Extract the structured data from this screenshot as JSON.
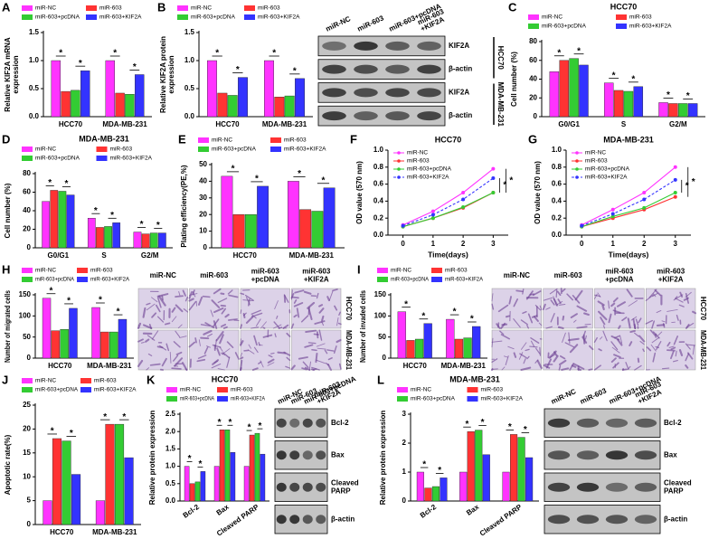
{
  "chart_data": [
    {
      "panel": "A",
      "type": "bar",
      "ylabel": [
        "Relative KIF2A mRNA",
        "expression"
      ],
      "categories": [
        "HCC70",
        "MDA-MB-231"
      ],
      "series": [
        {
          "name": "miR-NC",
          "color": "#ff33ff",
          "values": [
            1.0,
            1.0
          ]
        },
        {
          "name": "miR-603",
          "color": "#ff3333",
          "values": [
            0.45,
            0.42
          ]
        },
        {
          "name": "miR-603+pcDNA",
          "color": "#33cc33",
          "values": [
            0.47,
            0.4
          ]
        },
        {
          "name": "miR-603+KIF2A",
          "color": "#3333ff",
          "values": [
            0.82,
            0.75
          ]
        }
      ],
      "ylim": [
        0,
        1.5
      ],
      "yticks": [
        {
          "value": 0,
          "label": "0.0"
        },
        0.5,
        {
          "value": 1,
          "label": "1.0"
        },
        1.5
      ],
      "significance": "*"
    },
    {
      "panel": "B",
      "type": "bar",
      "ylabel": [
        "Relative KIF2A protein",
        "expression"
      ],
      "categories": [
        "HCC70",
        "MDA-MB-231"
      ],
      "series": [
        {
          "name": "miR-NC",
          "color": "#ff33ff",
          "values": [
            1.0,
            1.0
          ]
        },
        {
          "name": "miR-603",
          "color": "#ff3333",
          "values": [
            0.42,
            0.35
          ]
        },
        {
          "name": "miR-603+pcDNA",
          "color": "#33cc33",
          "values": [
            0.38,
            0.37
          ]
        },
        {
          "name": "miR-603+KIF2A",
          "color": "#3333ff",
          "values": [
            0.7,
            0.68
          ]
        }
      ],
      "ylim": [
        0,
        1.5
      ],
      "yticks": [
        {
          "value": 0,
          "label": "0.0"
        },
        0.5,
        {
          "value": 1,
          "label": "1.0"
        },
        1.5
      ],
      "significance": "*"
    },
    {
      "panel": "C",
      "type": "bar",
      "title": "HCC70",
      "ylabel": [
        "Cell number (%)"
      ],
      "categories": [
        "G0/G1",
        "S",
        "G2/M"
      ],
      "series": [
        {
          "name": "miR-NC",
          "color": "#ff33ff",
          "values": [
            48,
            36,
            15
          ]
        },
        {
          "name": "miR-603",
          "color": "#ff3333",
          "values": [
            60,
            28,
            14
          ]
        },
        {
          "name": "miR-603+pcDNA",
          "color": "#33cc33",
          "values": [
            62,
            27,
            14
          ]
        },
        {
          "name": "miR-603+KIF2A",
          "color": "#3333ff",
          "values": [
            55,
            32,
            14
          ]
        }
      ],
      "ylim": [
        0,
        80
      ],
      "yticks": [
        0,
        20,
        40,
        60,
        80
      ],
      "significance": "*"
    },
    {
      "panel": "D",
      "type": "bar",
      "title": "MDA-MB-231",
      "ylabel": [
        "Cell number (%)"
      ],
      "categories": [
        "G0/G1",
        "S",
        "G2/M"
      ],
      "series": [
        {
          "name": "miR-NC",
          "color": "#ff33ff",
          "values": [
            50,
            32,
            17
          ]
        },
        {
          "name": "miR-603",
          "color": "#ff3333",
          "values": [
            62,
            22,
            15
          ]
        },
        {
          "name": "miR-603+pcDNA",
          "color": "#33cc33",
          "values": [
            61,
            23,
            16
          ]
        },
        {
          "name": "miR-603+KIF2A",
          "color": "#3333ff",
          "values": [
            57,
            27,
            16
          ]
        }
      ],
      "ylim": [
        0,
        80
      ],
      "yticks": [
        0,
        20,
        40,
        60,
        80
      ],
      "significance": "*"
    },
    {
      "panel": "E",
      "type": "bar",
      "ylabel": [
        "Plating efficiency(PE,%)"
      ],
      "categories": [
        "HCC70",
        "MDA-MB-231"
      ],
      "series": [
        {
          "name": "miR-NC",
          "color": "#ff33ff",
          "values": [
            43,
            40
          ]
        },
        {
          "name": "miR-603",
          "color": "#ff3333",
          "values": [
            20,
            23
          ]
        },
        {
          "name": "miR-603+pcDNA",
          "color": "#33cc33",
          "values": [
            20,
            22
          ]
        },
        {
          "name": "miR-603+KIF2A",
          "color": "#3333ff",
          "values": [
            37,
            36
          ]
        }
      ],
      "ylim": [
        0,
        50
      ],
      "yticks": [
        0,
        10,
        20,
        30,
        40,
        50
      ],
      "significance": "*"
    },
    {
      "panel": "F",
      "type": "line",
      "title": "HCC70",
      "ylabel": [
        "OD value (570 nm)"
      ],
      "xlabel": "Time(days)",
      "x": [
        0,
        1,
        2,
        3
      ],
      "series": [
        {
          "name": "miR-NC",
          "color": "#ff33ff",
          "values": [
            0.12,
            0.28,
            0.5,
            0.78
          ]
        },
        {
          "name": "miR-603",
          "color": "#ff3333",
          "values": [
            0.1,
            0.2,
            0.32,
            0.5
          ]
        },
        {
          "name": "miR-603+pcDNA",
          "color": "#33cc33",
          "values": [
            0.1,
            0.2,
            0.33,
            0.5
          ]
        },
        {
          "name": "miR-603+KIF2A",
          "color": "#3333ff",
          "values": [
            0.11,
            0.24,
            0.42,
            0.67
          ],
          "linestyle": "dashed"
        }
      ],
      "xlim": [
        -0.5,
        3.5
      ],
      "xticks": [
        0,
        1,
        2,
        3
      ],
      "ylim": [
        0,
        1
      ],
      "yticks": [
        {
          "value": 0,
          "label": "0.0"
        },
        0.2,
        0.4,
        0.6,
        0.8,
        {
          "value": 1,
          "label": "1.0"
        }
      ],
      "legend": "upper left",
      "significance": "*"
    },
    {
      "panel": "G",
      "type": "line",
      "title": "MDA-MB-231",
      "ylabel": [
        "OD value (570 nm)"
      ],
      "xlabel": "Time(days)",
      "x": [
        0,
        1,
        2,
        3
      ],
      "series": [
        {
          "name": "miR-NC",
          "color": "#ff33ff",
          "values": [
            0.12,
            0.3,
            0.5,
            0.8
          ]
        },
        {
          "name": "miR-603",
          "color": "#ff3333",
          "values": [
            0.1,
            0.2,
            0.3,
            0.45
          ]
        },
        {
          "name": "miR-603+pcDNA",
          "color": "#33cc33",
          "values": [
            0.1,
            0.22,
            0.32,
            0.5
          ]
        },
        {
          "name": "miR-603+KIF2A",
          "color": "#3333ff",
          "values": [
            0.11,
            0.25,
            0.42,
            0.65
          ],
          "linestyle": "dashed"
        }
      ],
      "xlim": [
        -0.5,
        3.5
      ],
      "xticks": [
        0,
        1,
        2,
        3
      ],
      "ylim": [
        0,
        1
      ],
      "yticks": [
        {
          "value": 0,
          "label": "0.0"
        },
        0.2,
        0.4,
        0.6,
        0.8,
        {
          "value": 1,
          "label": "1.0"
        }
      ],
      "legend": "upper left",
      "significance": "*"
    },
    {
      "panel": "H",
      "type": "bar",
      "ylabel": [
        "Number of migrated cells"
      ],
      "categories": [
        "HCC70",
        "MDA-MB-231"
      ],
      "series": [
        {
          "name": "miR-NC",
          "color": "#ff33ff",
          "values": [
            142,
            120
          ]
        },
        {
          "name": "miR-603",
          "color": "#ff3333",
          "values": [
            65,
            62
          ]
        },
        {
          "name": "miR-603+pcDNA",
          "color": "#33cc33",
          "values": [
            68,
            62
          ]
        },
        {
          "name": "miR-603+KIF2A",
          "color": "#3333ff",
          "values": [
            118,
            92
          ]
        }
      ],
      "ylim": [
        0,
        150
      ],
      "yticks": [
        0,
        50,
        100,
        150
      ],
      "significance": "*"
    },
    {
      "panel": "I",
      "type": "bar",
      "ylabel": [
        "Number of invaded cells"
      ],
      "categories": [
        "HCC70",
        "MDA-MB-231"
      ],
      "series": [
        {
          "name": "miR-NC",
          "color": "#ff33ff",
          "values": [
            110,
            92
          ]
        },
        {
          "name": "miR-603",
          "color": "#ff3333",
          "values": [
            42,
            45
          ]
        },
        {
          "name": "miR-603+pcDNA",
          "color": "#33cc33",
          "values": [
            45,
            48
          ]
        },
        {
          "name": "miR-603+KIF2A",
          "color": "#3333ff",
          "values": [
            82,
            75
          ]
        }
      ],
      "ylim": [
        0,
        150
      ],
      "yticks": [
        0,
        50,
        100,
        150
      ],
      "significance": "*"
    },
    {
      "panel": "J",
      "type": "bar",
      "ylabel": [
        "Apoptotic rate(%)"
      ],
      "categories": [
        "HCC70",
        "MDA-MB-231"
      ],
      "series": [
        {
          "name": "miR-NC",
          "color": "#ff33ff",
          "values": [
            5,
            5
          ]
        },
        {
          "name": "miR-603",
          "color": "#ff3333",
          "values": [
            18,
            21
          ]
        },
        {
          "name": "miR-603+pcDNA",
          "color": "#33cc33",
          "values": [
            17.5,
            21
          ]
        },
        {
          "name": "miR-603+KIF2A",
          "color": "#3333ff",
          "values": [
            10.5,
            14
          ]
        }
      ],
      "ylim": [
        0,
        25
      ],
      "yticks": [
        0,
        5,
        10,
        15,
        20,
        25
      ],
      "significance": "*"
    },
    {
      "panel": "K",
      "type": "bar",
      "title": "HCC70",
      "ylabel": [
        "Relative protein expression"
      ],
      "categories": [
        "Bcl-2",
        "Bax",
        "Cleaved PARP"
      ],
      "xtick_rotation": 35,
      "series": [
        {
          "name": "miR-NC",
          "color": "#ff33ff",
          "values": [
            1.0,
            1.0,
            1.0
          ]
        },
        {
          "name": "miR-603",
          "color": "#ff3333",
          "values": [
            0.5,
            2.05,
            1.9
          ]
        },
        {
          "name": "miR-603+pcDNA",
          "color": "#33cc33",
          "values": [
            0.55,
            2.05,
            1.95
          ]
        },
        {
          "name": "miR-603+KIF2A",
          "color": "#3333ff",
          "values": [
            0.85,
            1.4,
            1.35
          ]
        }
      ],
      "ylim": [
        0,
        2.5
      ],
      "yticks": [
        {
          "value": 0,
          "label": "0.0"
        },
        0.5,
        {
          "value": 1,
          "label": "1.0"
        },
        1.5,
        {
          "value": 2,
          "label": "2.0"
        },
        2.5
      ],
      "significance": "*"
    },
    {
      "panel": "L",
      "type": "bar",
      "title": "MDA-MB-231",
      "ylabel": [
        "Relative protein expression"
      ],
      "categories": [
        "Bcl-2",
        "Bax",
        "Cleaved PARP"
      ],
      "xtick_rotation": 35,
      "series": [
        {
          "name": "miR-NC",
          "color": "#ff33ff",
          "values": [
            1.0,
            1.0,
            1.0
          ]
        },
        {
          "name": "miR-603",
          "color": "#ff3333",
          "values": [
            0.45,
            2.4,
            2.3
          ]
        },
        {
          "name": "miR-603+pcDNA",
          "color": "#33cc33",
          "values": [
            0.5,
            2.45,
            2.2
          ]
        },
        {
          "name": "miR-603+KIF2A",
          "color": "#3333ff",
          "values": [
            0.8,
            1.6,
            1.5
          ]
        }
      ],
      "ylim": [
        0,
        3
      ],
      "yticks": [
        0,
        1,
        2,
        3
      ],
      "significance": "*"
    }
  ],
  "blots": [
    {
      "lanes": [
        [
          "miR-NC"
        ],
        [
          "miR-603"
        ],
        [
          "miR-603+pcDNA"
        ],
        [
          "miR-603",
          "+KIF2A"
        ]
      ],
      "bands": [
        [
          "KIF2A"
        ],
        [
          "β-actin"
        ],
        [
          "KIF2A"
        ],
        [
          "β-actin"
        ]
      ],
      "groups": [
        "HCC70",
        "MDA-MB-231"
      ]
    },
    {
      "lanes": [
        [
          "miR-NC"
        ],
        [
          "miR-603"
        ],
        [
          "miR-603+pcDNA"
        ],
        [
          "miR-603",
          "+KIF2A"
        ]
      ],
      "bands": [
        [
          "Bcl-2"
        ],
        [
          "Bax"
        ],
        [
          "Cleaved",
          "PARP"
        ],
        [
          "β-actin"
        ]
      ]
    },
    {
      "lanes": [
        [
          "miR-NC"
        ],
        [
          "miR-603"
        ],
        [
          "miR-603+pcDNA"
        ],
        [
          "miR-603",
          "+KIF2A"
        ]
      ],
      "bands": [
        [
          "Bcl-2"
        ],
        [
          "Bax"
        ],
        [
          "Cleaved",
          "PARP"
        ],
        [
          "β-actin"
        ]
      ]
    }
  ],
  "micrographs": [
    {
      "columns": [
        [
          "miR-NC"
        ],
        [
          "miR-603"
        ],
        [
          "miR-603",
          "+pcDNA"
        ],
        [
          "miR-603",
          "+KIF2A"
        ]
      ],
      "rows": [
        "HCC70",
        "MDA-MB-231"
      ]
    },
    {
      "columns": [
        [
          "miR-NC"
        ],
        [
          "miR-603"
        ],
        [
          "miR-603",
          "+pcDNA"
        ],
        [
          "miR-603",
          "+KIF2A"
        ]
      ],
      "rows": [
        "HCC70",
        "MDA-MB-231"
      ]
    }
  ]
}
